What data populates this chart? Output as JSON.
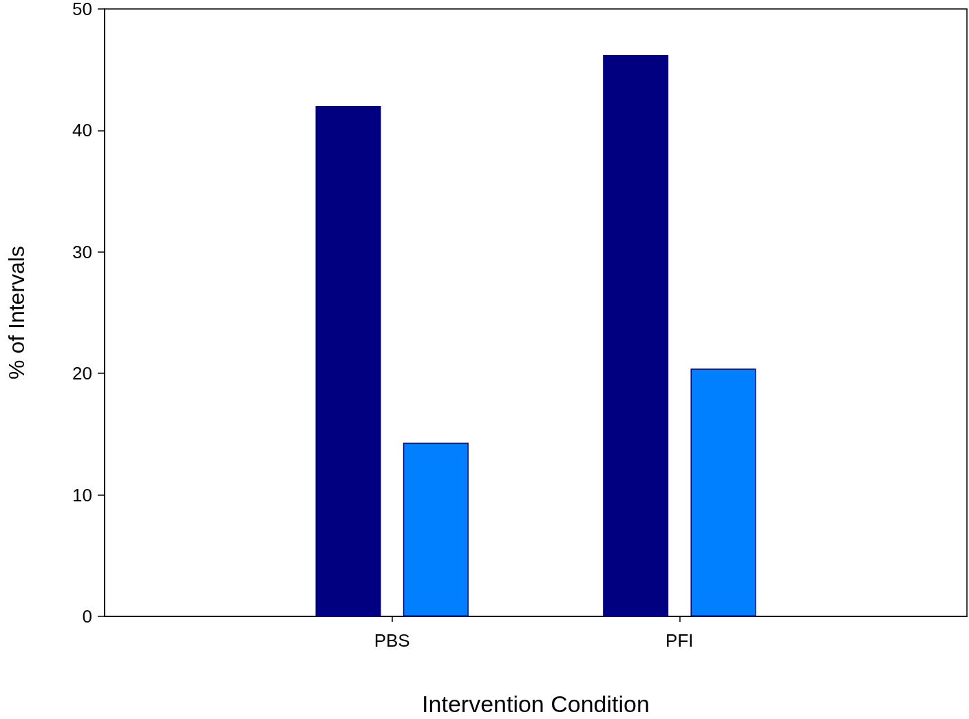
{
  "chart_data": {
    "type": "bar",
    "xlabel": "Intervention Condition",
    "ylabel": "% of Intervals",
    "categories": [
      "PBS",
      "PFI"
    ],
    "series": [
      {
        "color": "#000080",
        "values": [
          42.0,
          46.2
        ]
      },
      {
        "color": "#0080ff",
        "values": [
          14.3,
          20.4
        ]
      }
    ],
    "ylim": [
      0,
      50
    ],
    "yticks": [
      0,
      10,
      20,
      30,
      40,
      50
    ],
    "grid": false
  }
}
